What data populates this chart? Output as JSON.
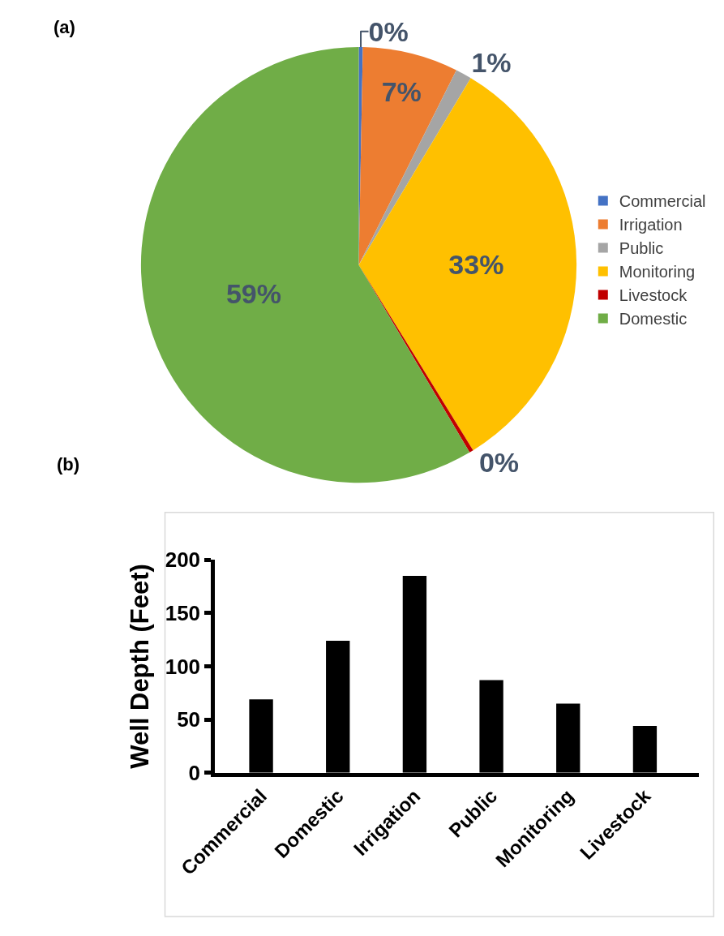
{
  "chart_data": [
    {
      "type": "pie",
      "annotations": [
        "(a)"
      ],
      "categories": [
        "Commercial",
        "Irrigation",
        "Public",
        "Monitoring",
        "Livestock",
        "Domestic"
      ],
      "values": [
        0.3,
        7.1,
        1.2,
        32.6,
        0.3,
        58.5
      ],
      "value_labels": [
        "0%",
        "7%",
        "1%",
        "33%",
        "0%",
        "59%"
      ],
      "colors": [
        "#4472c4",
        "#ed7d31",
        "#a5a5a5",
        "#ffc000",
        "#c00000",
        "#70ad47"
      ],
      "legend": "right"
    },
    {
      "type": "bar",
      "annotations": [
        "(b)"
      ],
      "categories": [
        "Commercial",
        "Domestic",
        "Irrigation",
        "Public",
        "Monitoring",
        "Livestock"
      ],
      "values": [
        69,
        124,
        185,
        87,
        65,
        44
      ],
      "color": "#000000",
      "ylabel": "Well Depth (Feet)",
      "ylim": [
        0,
        200
      ],
      "yticks": [
        0,
        50,
        100,
        150,
        200
      ]
    }
  ]
}
